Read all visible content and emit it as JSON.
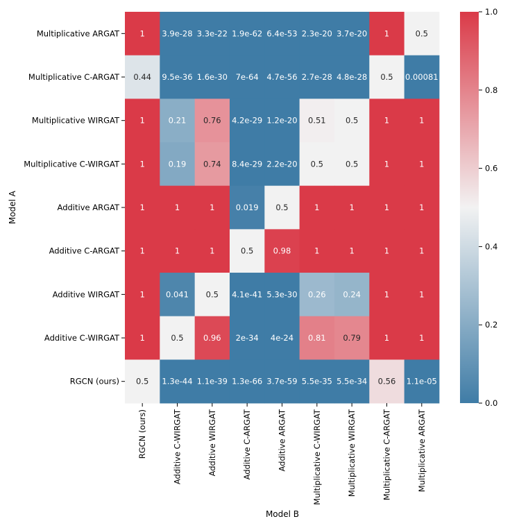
{
  "chart_data": {
    "type": "heatmap",
    "title": "",
    "xlabel": "Model B",
    "ylabel": "Model A",
    "rows": [
      "Multiplicative ARGAT",
      "Multiplicative C-ARGAT",
      "Multiplicative WIRGAT",
      "Multiplicative C-WIRGAT",
      "Additive ARGAT",
      "Additive C-ARGAT",
      "Additive WIRGAT",
      "Additive C-WIRGAT",
      "RGCN (ours)"
    ],
    "columns": [
      "RGCN (ours)",
      "Additive C-WIRGAT",
      "Additive WIRGAT",
      "Additive C-ARGAT",
      "Additive ARGAT",
      "Multiplicative C-WIRGAT",
      "Multiplicative WIRGAT",
      "Multiplicative C-ARGAT",
      "Multiplicative ARGAT"
    ],
    "values": [
      [
        1,
        3.9e-28,
        3.3e-22,
        1.9e-62,
        6.4e-53,
        2.3e-20,
        3.7e-20,
        1,
        0.5
      ],
      [
        0.44,
        9.5e-36,
        1.6e-30,
        7e-64,
        4.7e-56,
        2.7e-28,
        4.8e-28,
        0.5,
        0.00081
      ],
      [
        1,
        0.21,
        0.76,
        4.2e-29,
        1.2e-20,
        0.51,
        0.5,
        1,
        1
      ],
      [
        1,
        0.19,
        0.74,
        8.4e-29,
        2.2e-20,
        0.5,
        0.5,
        1,
        1
      ],
      [
        1,
        1,
        1,
        0.019,
        0.5,
        1,
        1,
        1,
        1
      ],
      [
        1,
        1,
        1,
        0.5,
        0.98,
        1,
        1,
        1,
        1
      ],
      [
        1,
        0.041,
        0.5,
        4.1e-41,
        5.3e-30,
        0.26,
        0.24,
        1,
        1
      ],
      [
        1,
        0.5,
        0.96,
        2e-34,
        4e-24,
        0.81,
        0.79,
        1,
        1
      ],
      [
        0.5,
        1.3e-44,
        1.1e-39,
        1.3e-66,
        3.7e-59,
        5.5e-35,
        5.5e-34,
        0.56,
        1.1e-05
      ]
    ],
    "annotations": [
      [
        "1",
        "3.9e-28",
        "3.3e-22",
        "1.9e-62",
        "6.4e-53",
        "2.3e-20",
        "3.7e-20",
        "1",
        "0.5"
      ],
      [
        "0.44",
        "9.5e-36",
        "1.6e-30",
        "7e-64",
        "4.7e-56",
        "2.7e-28",
        "4.8e-28",
        "0.5",
        "0.00081"
      ],
      [
        "1",
        "0.21",
        "0.76",
        "4.2e-29",
        "1.2e-20",
        "0.51",
        "0.5",
        "1",
        "1"
      ],
      [
        "1",
        "0.19",
        "0.74",
        "8.4e-29",
        "2.2e-20",
        "0.5",
        "0.5",
        "1",
        "1"
      ],
      [
        "1",
        "1",
        "1",
        "0.019",
        "0.5",
        "1",
        "1",
        "1",
        "1"
      ],
      [
        "1",
        "1",
        "1",
        "0.5",
        "0.98",
        "1",
        "1",
        "1",
        "1"
      ],
      [
        "1",
        "0.041",
        "0.5",
        "4.1e-41",
        "5.3e-30",
        "0.26",
        "0.24",
        "1",
        "1"
      ],
      [
        "1",
        "0.5",
        "0.96",
        "2e-34",
        "4e-24",
        "0.81",
        "0.79",
        "1",
        "1"
      ],
      [
        "0.5",
        "1.3e-44",
        "1.1e-39",
        "1.3e-66",
        "3.7e-59",
        "5.5e-35",
        "5.5e-34",
        "0.56",
        "1.1e-05"
      ]
    ],
    "colorbar": {
      "range": [
        0.0,
        1.0
      ],
      "ticks": [
        0.0,
        0.2,
        0.4,
        0.6,
        0.8,
        1.0
      ],
      "tick_labels": [
        "0.0",
        "0.2",
        "0.4",
        "0.6",
        "0.8",
        "1.0"
      ]
    },
    "colormap": {
      "low": "#3f7ca6",
      "mid": "#f2f2f2",
      "high": "#da3a48"
    }
  }
}
